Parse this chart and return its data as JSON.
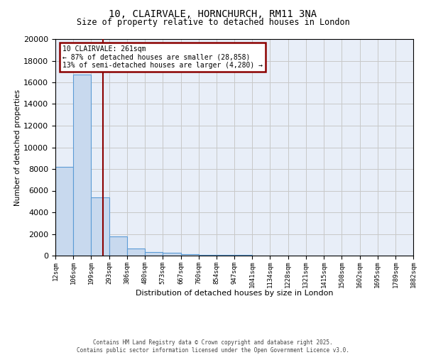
{
  "title_line1": "10, CLAIRVALE, HORNCHURCH, RM11 3NA",
  "title_line2": "Size of property relative to detached houses in London",
  "xlabel": "Distribution of detached houses by size in London",
  "ylabel": "Number of detached properties",
  "bin_edges": [
    12,
    106,
    199,
    293,
    386,
    480,
    573,
    667,
    760,
    854,
    947,
    1041,
    1134,
    1228,
    1321,
    1415,
    1508,
    1602,
    1695,
    1789,
    1882
  ],
  "bar_heights": [
    8200,
    16700,
    5400,
    1800,
    650,
    350,
    250,
    150,
    80,
    50,
    40,
    30,
    20,
    15,
    10,
    8,
    5,
    4,
    3,
    2
  ],
  "bar_color": "#c8d9ee",
  "bar_edge_color": "#5b9bd5",
  "grid_color": "#c8c8c8",
  "background_color": "#e8eef8",
  "property_size": 261,
  "annotation_line1": "10 CLAIRVALE: 261sqm",
  "annotation_line2": "← 87% of detached houses are smaller (28,858)",
  "annotation_line3": "13% of semi-detached houses are larger (4,280) →",
  "vline_color": "#8b0000",
  "annotation_box_color": "#8b0000",
  "ylim": [
    0,
    20000
  ],
  "yticks": [
    0,
    2000,
    4000,
    6000,
    8000,
    10000,
    12000,
    14000,
    16000,
    18000,
    20000
  ],
  "footer_line1": "Contains HM Land Registry data © Crown copyright and database right 2025.",
  "footer_line2": "Contains public sector information licensed under the Open Government Licence v3.0."
}
